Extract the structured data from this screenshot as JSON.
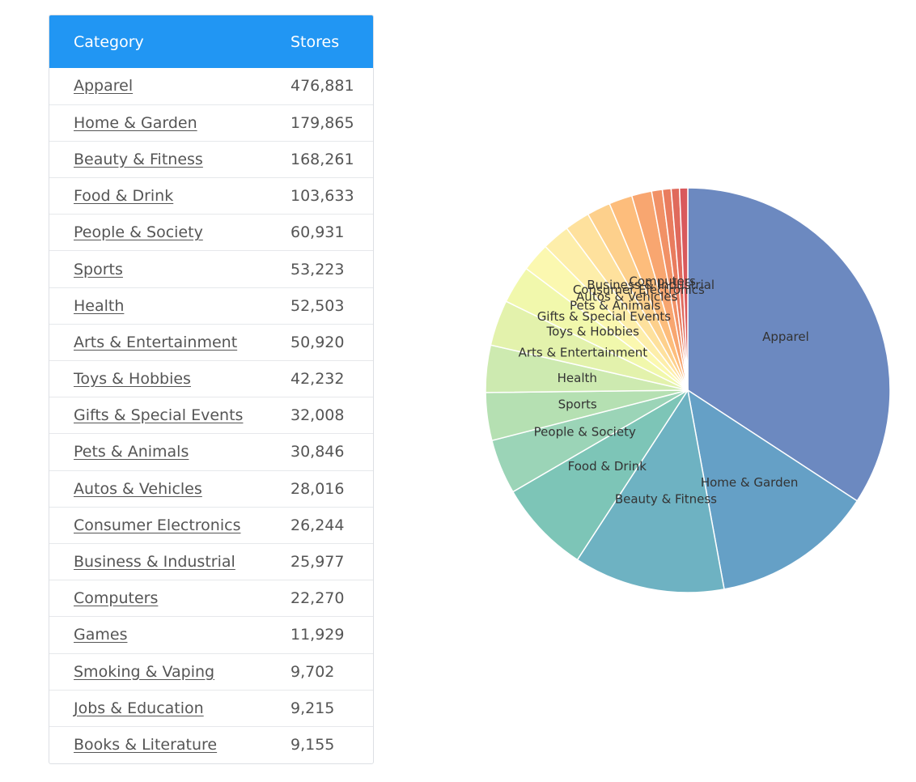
{
  "table": {
    "headers": {
      "category": "Category",
      "stores": "Stores"
    },
    "rows": [
      {
        "category": "Apparel",
        "stores": "476,881"
      },
      {
        "category": "Home & Garden",
        "stores": "179,865"
      },
      {
        "category": "Beauty & Fitness",
        "stores": "168,261"
      },
      {
        "category": "Food & Drink",
        "stores": "103,633"
      },
      {
        "category": "People & Society",
        "stores": "60,931"
      },
      {
        "category": "Sports",
        "stores": "53,223"
      },
      {
        "category": "Health",
        "stores": "52,503"
      },
      {
        "category": "Arts & Entertainment",
        "stores": "50,920"
      },
      {
        "category": "Toys & Hobbies",
        "stores": "42,232"
      },
      {
        "category": "Gifts & Special Events",
        "stores": "32,008"
      },
      {
        "category": "Pets & Animals",
        "stores": "30,846"
      },
      {
        "category": "Autos & Vehicles",
        "stores": "28,016"
      },
      {
        "category": "Consumer Electronics",
        "stores": "26,244"
      },
      {
        "category": "Business & Industrial",
        "stores": "25,977"
      },
      {
        "category": "Computers",
        "stores": "22,270"
      },
      {
        "category": "Games",
        "stores": "11,929"
      },
      {
        "category": "Smoking & Vaping",
        "stores": "9,702"
      },
      {
        "category": "Jobs & Education",
        "stores": "9,215"
      },
      {
        "category": "Books & Literature",
        "stores": "9,155"
      }
    ]
  },
  "chart_data": {
    "type": "pie",
    "title": "",
    "labels": [
      "Apparel",
      "Home & Garden",
      "Beauty & Fitness",
      "Food & Drink",
      "People & Society",
      "Sports",
      "Health",
      "Arts & Entertainment",
      "Toys & Hobbies",
      "Gifts & Special Events",
      "Pets & Animals",
      "Autos & Vehicles",
      "Consumer Electronics",
      "Business & Industrial",
      "Computers",
      "Games",
      "Smoking & Vaping",
      "Jobs & Education",
      "Books & Literature"
    ],
    "values": [
      476881,
      179865,
      168261,
      103633,
      60931,
      53223,
      52503,
      50920,
      42232,
      32008,
      30846,
      28016,
      26244,
      25977,
      22270,
      11929,
      9702,
      9215,
      9155
    ],
    "shown_labels": [
      "Apparel",
      "Home & Garden",
      "Beauty & Fitness",
      "Food & Drink",
      "People & Society",
      "Sports",
      "Health",
      "Arts & Entertainment",
      "Toys & Hobbies",
      "Gifts & Special Events",
      "Pets & Animals",
      "Autos & Vehicles",
      "Consumer Electronics",
      "Business & Industrial",
      "Computers"
    ],
    "colors": [
      "#6c89c0",
      "#65a0c6",
      "#6eb2c2",
      "#7dc5b7",
      "#9bd4b7",
      "#b5e0b2",
      "#cdeab0",
      "#e3f2ac",
      "#f1f8ac",
      "#fbf8b0",
      "#fdeeaa",
      "#fee19d",
      "#fdd08c",
      "#fdbd7c",
      "#f8a670",
      "#f19166",
      "#e97c5e",
      "#e06a5c",
      "#d9595c"
    ],
    "legend": "none"
  }
}
